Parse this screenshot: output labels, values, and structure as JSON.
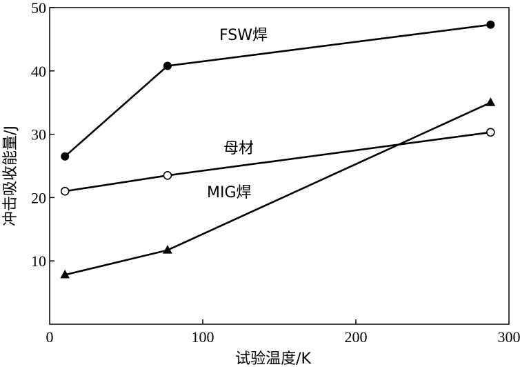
{
  "chart_data": {
    "type": "line",
    "title": "",
    "xlabel": "试验温度/K",
    "ylabel": "冲击吸收能量/J",
    "xlim": [
      0,
      300
    ],
    "ylim": [
      0,
      50
    ],
    "xticks": [
      0,
      100,
      200,
      300
    ],
    "yticks": [
      10,
      20,
      30,
      40,
      50
    ],
    "grid": false,
    "legend": "none",
    "series": [
      {
        "name": "FSW焊",
        "marker": "filled-circle",
        "color": "#000000",
        "x": [
          10,
          77,
          288
        ],
        "y": [
          26.5,
          40.8,
          47.3
        ]
      },
      {
        "name": "母材",
        "marker": "open-circle",
        "color": "#000000",
        "x": [
          10,
          77,
          288
        ],
        "y": [
          21.0,
          23.5,
          30.3
        ]
      },
      {
        "name": "MIG焊",
        "marker": "filled-triangle",
        "color": "#000000",
        "x": [
          10,
          77,
          288
        ],
        "y": [
          7.8,
          11.7,
          35.0
        ]
      }
    ]
  }
}
